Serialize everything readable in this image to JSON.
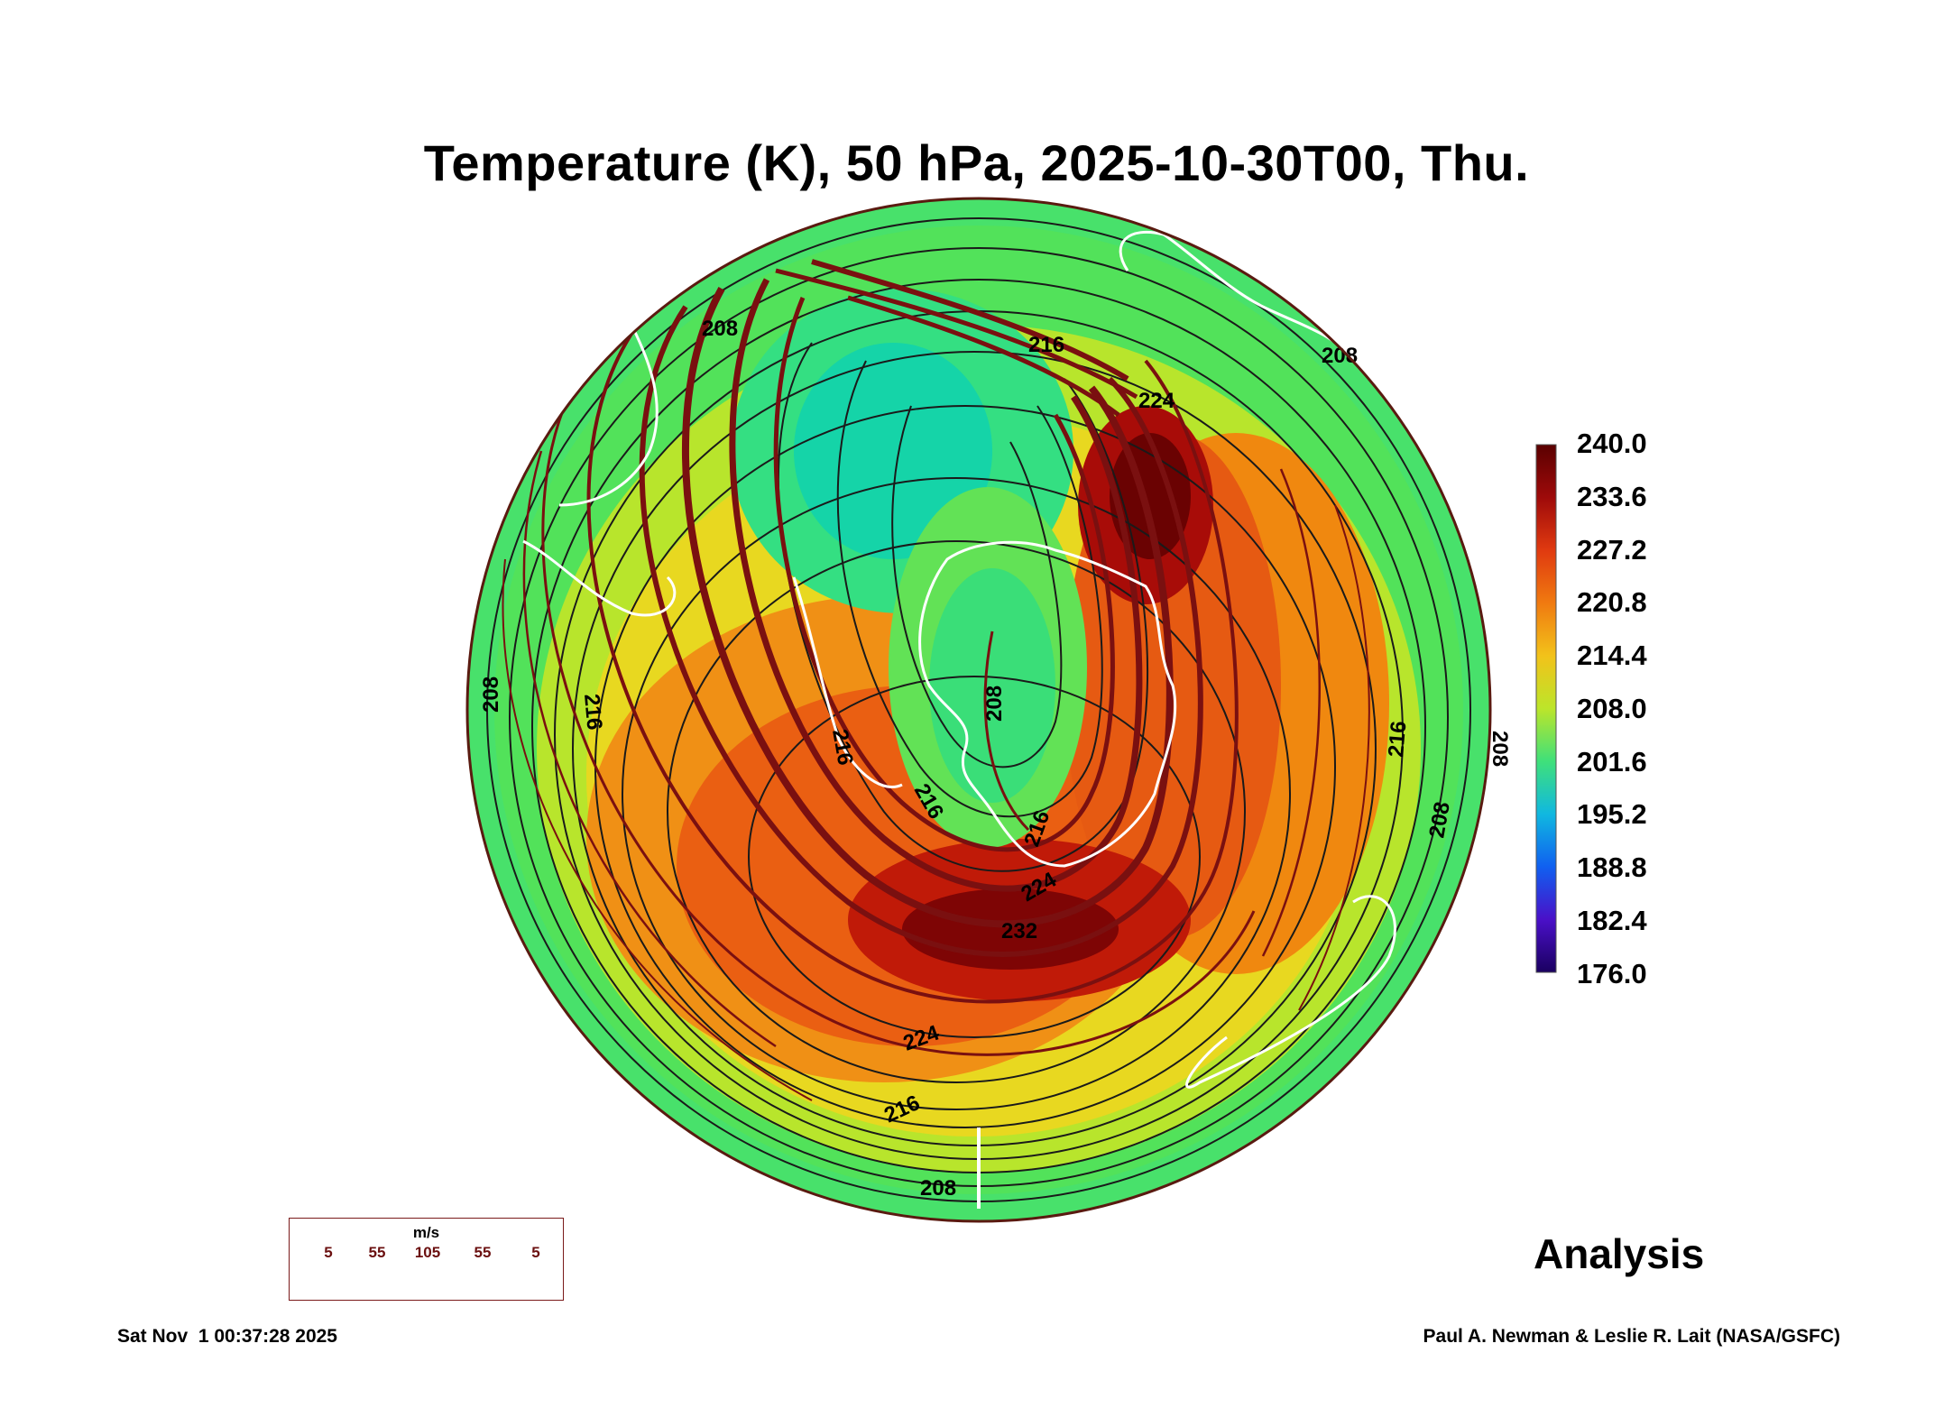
{
  "title": "Temperature (K), 50 hPa, 2025-10-30T00, Thu.",
  "colorbar": {
    "labels": [
      "240.0",
      "233.6",
      "227.2",
      "220.8",
      "214.4",
      "208.0",
      "201.6",
      "195.2",
      "188.8",
      "182.4",
      "176.0"
    ],
    "colors": [
      "#5a0000",
      "#9e0a0a",
      "#e03a10",
      "#f07a10",
      "#f2c21a",
      "#bce52a",
      "#3fe07a",
      "#10b8e0",
      "#1060f0",
      "#4a10c8",
      "#1a0060"
    ]
  },
  "contour_labels": [
    "216",
    "224",
    "208",
    "208",
    "216",
    "208",
    "216",
    "216",
    "208",
    "208",
    "216",
    "216",
    "224",
    "232",
    "224",
    "216",
    "208",
    "208"
  ],
  "wind_legend": {
    "unit": "m/s",
    "values": [
      "5",
      "55",
      "105",
      "55",
      "5"
    ]
  },
  "analysis_label": "Analysis",
  "footer": {
    "timestamp": "Sat Nov  1 00:37:28 2025",
    "credit": "Paul A. Newman & Leslie R. Lait (NASA/GSFC)"
  }
}
